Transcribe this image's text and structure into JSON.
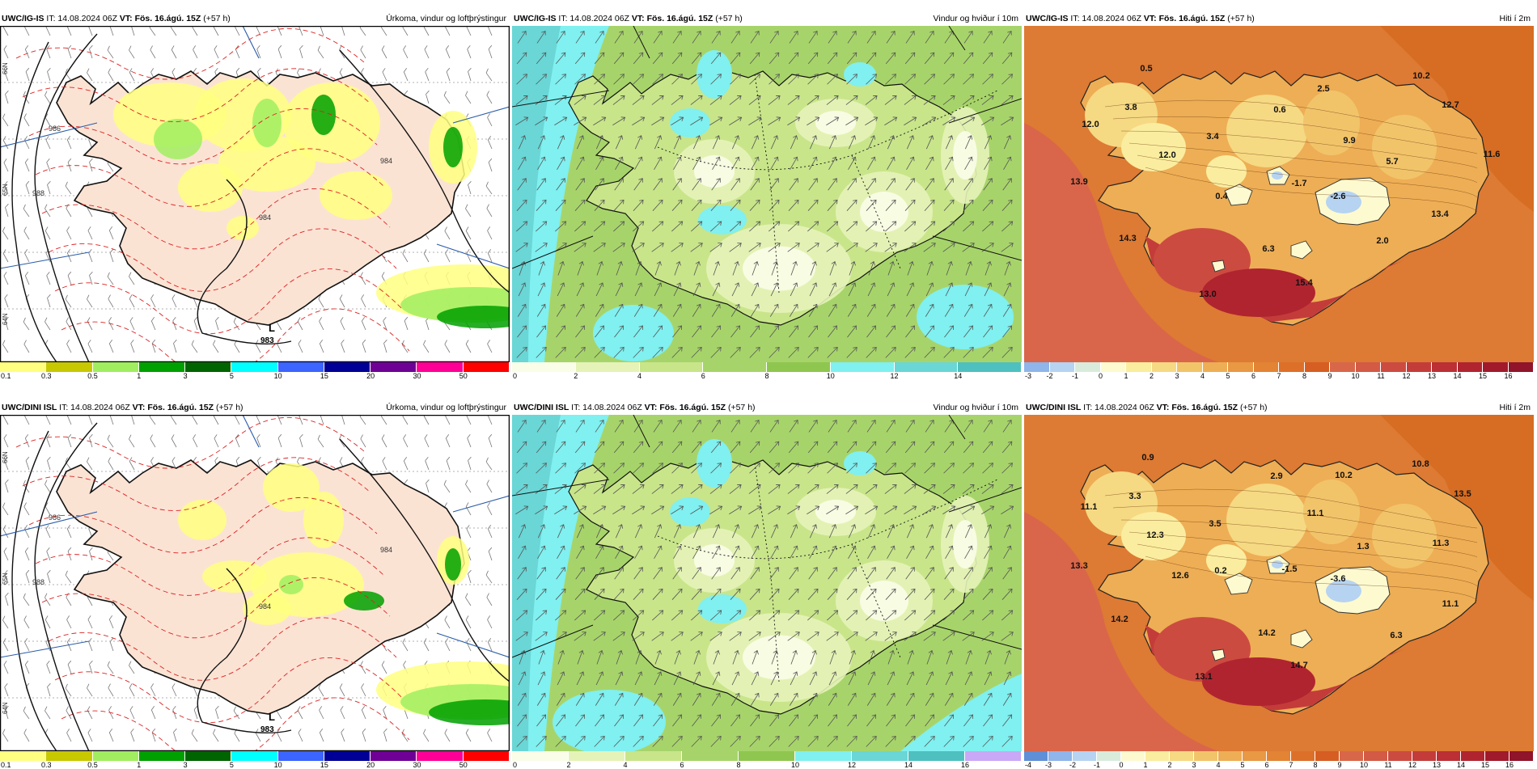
{
  "rows": [
    {
      "model": "UWC/IG-IS",
      "it": "IT: 14.08.2024 06Z",
      "vt": "VT: Fös. 16.ágú. 15Z",
      "lead": "(+57 h)",
      "precip": {
        "title": "Úrkoma, vindur og loftþrýstingur",
        "low_label": "L",
        "low_value": "983",
        "isobars": [
          "984",
          "986",
          "988",
          "984"
        ],
        "side_labels": [
          "66N",
          "65N",
          "64N"
        ],
        "legend": [
          "0.1",
          "0.3",
          "0.5",
          "1",
          "3",
          "5",
          "10",
          "15",
          "20",
          "30",
          "50"
        ]
      },
      "wind": {
        "title": "Vindur og hviður í 10m",
        "legend": [
          "0",
          "2",
          "4",
          "6",
          "8",
          "10",
          "12",
          "14"
        ]
      },
      "temp": {
        "title": "Hiti í 2m",
        "legend": [
          "-3",
          "-2",
          "-1",
          "0",
          "1",
          "2",
          "3",
          "4",
          "5",
          "6",
          "7",
          "8",
          "9",
          "10",
          "11",
          "12",
          "13",
          "14",
          "15",
          "16"
        ],
        "values": [
          "0.5",
          "10.2",
          "2.5",
          "12.7",
          "3.8",
          "0.6",
          "12.0",
          "3.4",
          "9.9",
          "11.6",
          "12.0",
          "5.7",
          "13.9",
          "0.4",
          "-1.7",
          "-2.6",
          "13.4",
          "14.3",
          "2.0",
          "6.3",
          "15.4",
          "13.0"
        ]
      }
    },
    {
      "model": "UWC/DINI ISL",
      "it": "IT: 14.08.2024 06Z",
      "vt": "VT: Fös. 16.ágú. 15Z",
      "lead": "(+57 h)",
      "precip": {
        "title": "Úrkoma, vindur og loftþrýstingur",
        "low_label": "L",
        "low_value": "983",
        "isobars": [
          "984",
          "986",
          "988",
          "984"
        ],
        "side_labels": [
          "66N",
          "65N",
          "64N"
        ],
        "legend": [
          "0.1",
          "0.3",
          "0.5",
          "1",
          "3",
          "5",
          "10",
          "15",
          "20",
          "30",
          "50"
        ]
      },
      "wind": {
        "title": "Vindur og hviður í 10m",
        "legend": [
          "0",
          "2",
          "4",
          "6",
          "8",
          "10",
          "12",
          "14",
          "16"
        ]
      },
      "temp": {
        "title": "Hiti í 2m",
        "legend": [
          "-4",
          "-3",
          "-2",
          "-1",
          "0",
          "1",
          "2",
          "3",
          "4",
          "5",
          "6",
          "7",
          "8",
          "9",
          "10",
          "11",
          "12",
          "13",
          "14",
          "15",
          "16"
        ],
        "values": [
          "0.9",
          "10.8",
          "2.9",
          "10.2",
          "13.5",
          "11.1",
          "3.3",
          "11.1",
          "3.5",
          "12.3",
          "13.3",
          "1.3",
          "11.3",
          "12.6",
          "0.2",
          "-1.5",
          "-3.6",
          "11.1",
          "14.2",
          "6.3",
          "14.2",
          "14.7",
          "13.1"
        ]
      }
    }
  ],
  "colors": {
    "precip_scale": [
      "#ffff80",
      "#c8c800",
      "#a0ee60",
      "#00a000",
      "#006400",
      "#00ffff",
      "#3c64ff",
      "#000096",
      "#6e0096",
      "#ff0096",
      "#ff0000"
    ],
    "wind_scale": [
      "#fafde8",
      "#e5f3b8",
      "#c8e58a",
      "#a7d46a",
      "#8fc64f",
      "#80f0f0",
      "#6ad6d6",
      "#4fc0c0",
      "#c9a8f7"
    ],
    "temp_scale": [
      "#5f8fd6",
      "#8fb5ea",
      "#b6d3f2",
      "#d9ecdc",
      "#fdfad0",
      "#fbed9f",
      "#f6d983",
      "#f2c46a",
      "#eeae55",
      "#e99843",
      "#e38334",
      "#dd7029",
      "#d65e22",
      "#d8674a",
      "#d35a45",
      "#cc4b40",
      "#c43c3a",
      "#bb2f35",
      "#b02430",
      "#a11a2b",
      "#90142a"
    ],
    "land_precip": "#fbe3d4",
    "sea": "#ffffff"
  }
}
